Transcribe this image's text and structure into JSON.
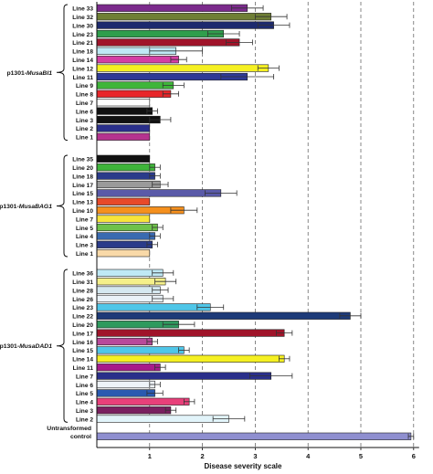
{
  "chart_data": {
    "type": "bar",
    "orientation": "horizontal",
    "xlabel": "Disease severity scale",
    "xlim": [
      0,
      6
    ],
    "xticks": [
      "1",
      "2",
      "3",
      "4",
      "5",
      "6"
    ],
    "grid": "vertical-dashed",
    "groups": [
      {
        "name_prefix": "p1301-",
        "name_gene": "MusaBI1",
        "bars": [
          {
            "label": "Line 33",
            "value": 2.85,
            "error": 0.3,
            "color": "#7b2a8c"
          },
          {
            "label": "Line 32",
            "value": 3.3,
            "error": 0.3,
            "color": "#6f7f35"
          },
          {
            "label": "Line 30",
            "value": 3.35,
            "error": 0.3,
            "color": "#1d2a6e"
          },
          {
            "label": "Line 23",
            "value": 2.4,
            "error": 0.3,
            "color": "#2f9e4c"
          },
          {
            "label": "Line 21",
            "value": 2.7,
            "error": 0.25,
            "color": "#a0142a"
          },
          {
            "label": "Line 18",
            "value": 1.5,
            "error": 0.5,
            "color": "#bfe9f5"
          },
          {
            "label": "Line 14",
            "value": 1.55,
            "error": 0.15,
            "color": "#d43fa4"
          },
          {
            "label": "Line 12",
            "value": 3.25,
            "error": 0.2,
            "color": "#f5f022"
          },
          {
            "label": "Line 11",
            "value": 2.85,
            "error": 0.5,
            "color": "#2f3a96"
          },
          {
            "label": "Line 9",
            "value": 1.45,
            "error": 0.2,
            "color": "#3fb53a"
          },
          {
            "label": "Line 8",
            "value": 1.4,
            "error": 0.15,
            "color": "#e8262a"
          },
          {
            "label": "Line 7",
            "value": 1.0,
            "error": 0.0,
            "color": "#ffffff"
          },
          {
            "label": "Line 6",
            "value": 1.05,
            "error": 0.1,
            "color": "#111111"
          },
          {
            "label": "Line 3",
            "value": 1.2,
            "error": 0.2,
            "color": "#111111"
          },
          {
            "label": "Line 2",
            "value": 1.0,
            "error": 0.0,
            "color": "#2a2f8a"
          },
          {
            "label": "Line 1",
            "value": 1.0,
            "error": 0.0,
            "color": "#b5338f"
          }
        ]
      },
      {
        "name_prefix": "p1301-",
        "name_gene": "MusaBAG1",
        "bars": [
          {
            "label": "Line 35",
            "value": 1.0,
            "error": 0.0,
            "color": "#111111"
          },
          {
            "label": "Line 20",
            "value": 1.1,
            "error": 0.1,
            "color": "#3fb53a"
          },
          {
            "label": "Line 18",
            "value": 1.1,
            "error": 0.1,
            "color": "#2a3b8a"
          },
          {
            "label": "Line 17",
            "value": 1.2,
            "error": 0.15,
            "color": "#9a9a9a"
          },
          {
            "label": "Line 15",
            "value": 2.35,
            "error": 0.3,
            "color": "#5a5aa8"
          },
          {
            "label": "Line 13",
            "value": 1.0,
            "error": 0.0,
            "color": "#e84a2a"
          },
          {
            "label": "Line 10",
            "value": 1.65,
            "error": 0.25,
            "color": "#f5901e"
          },
          {
            "label": "Line 7",
            "value": 1.0,
            "error": 0.0,
            "color": "#f7e43a"
          },
          {
            "label": "Line 5",
            "value": 1.15,
            "error": 0.1,
            "color": "#6fc24a"
          },
          {
            "label": "Line 4",
            "value": 1.1,
            "error": 0.1,
            "color": "#3a6ab0"
          },
          {
            "label": "Line 3",
            "value": 1.05,
            "error": 0.1,
            "color": "#2a3b8a"
          },
          {
            "label": "Line 1",
            "value": 1.0,
            "error": 0.0,
            "color": "#f9d9a8"
          }
        ]
      },
      {
        "name_prefix": "p1301-",
        "name_gene": "MusaDAD1",
        "bars": [
          {
            "label": "Line 36",
            "value": 1.25,
            "error": 0.2,
            "color": "#bfe9f5"
          },
          {
            "label": "Line 31",
            "value": 1.3,
            "error": 0.2,
            "color": "#f5f08a"
          },
          {
            "label": "Line 28",
            "value": 1.2,
            "error": 0.15,
            "color": "#d5e8f0"
          },
          {
            "label": "Line 26",
            "value": 1.25,
            "error": 0.2,
            "color": "#eaf2f8"
          },
          {
            "label": "Line 23",
            "value": 2.15,
            "error": 0.25,
            "color": "#4fc6e8"
          },
          {
            "label": "Line 22",
            "value": 4.8,
            "error": 0.2,
            "color": "#1d3a78"
          },
          {
            "label": "Line 20",
            "value": 1.55,
            "error": 0.3,
            "color": "#2e9a5e"
          },
          {
            "label": "Line 17",
            "value": 3.55,
            "error": 0.15,
            "color": "#a0142a"
          },
          {
            "label": "Line 16",
            "value": 1.05,
            "error": 0.1,
            "color": "#b84a9a"
          },
          {
            "label": "Line 15",
            "value": 1.65,
            "error": 0.1,
            "color": "#4fc6e8"
          },
          {
            "label": "Line 14",
            "value": 3.55,
            "error": 0.1,
            "color": "#f5f022"
          },
          {
            "label": "Line 11",
            "value": 1.2,
            "error": 0.1,
            "color": "#a81a8a"
          },
          {
            "label": "Line 7",
            "value": 3.3,
            "error": 0.4,
            "color": "#2a2f8a"
          },
          {
            "label": "Line 6",
            "value": 1.1,
            "error": 0.1,
            "color": "#eef3f8"
          },
          {
            "label": "Line 5",
            "value": 1.1,
            "error": 0.15,
            "color": "#2a5ab0"
          },
          {
            "label": "Line 4",
            "value": 1.75,
            "error": 0.1,
            "color": "#e8407a"
          },
          {
            "label": "Line 3",
            "value": 1.4,
            "error": 0.1,
            "color": "#7a2060"
          },
          {
            "label": "Line 2",
            "value": 2.5,
            "error": 0.3,
            "color": "#e2f4fa"
          }
        ]
      },
      {
        "name_lines": [
          "Untransformed",
          "control"
        ],
        "bars": [
          {
            "label": "",
            "value": 5.95,
            "error": 0.05,
            "color": "#8f8fd0"
          }
        ]
      }
    ]
  }
}
